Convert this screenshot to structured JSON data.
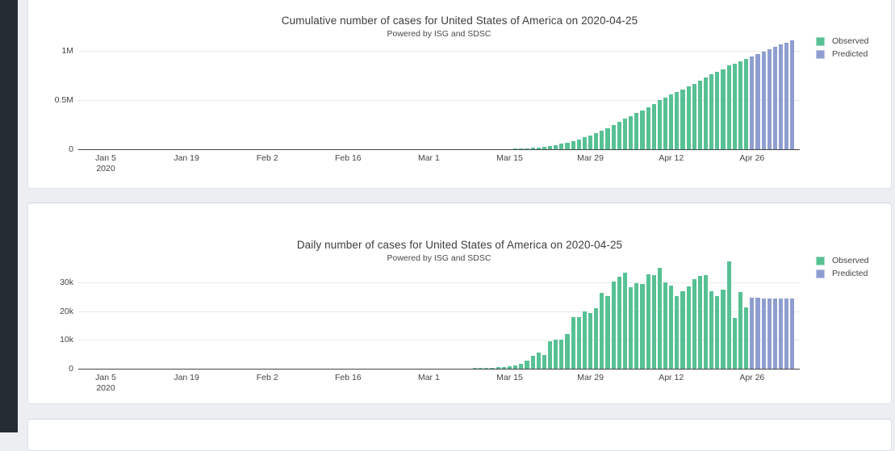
{
  "app": {
    "background_color": "#eceef2",
    "rail_color": "#232b33",
    "card_color": "#ffffff"
  },
  "colors": {
    "observed": "#57c194",
    "observed_border": "#a8dcc7",
    "predicted": "#8f9ed0",
    "predicted_border": "#c0c9e6",
    "grid": "#e9e9e9",
    "axis": "#444444",
    "text": "#444444"
  },
  "chart_data": [
    {
      "type": "bar",
      "title": "Cumulative number of cases for United States of America on 2020-04-25",
      "subtitle": "Powered by ISG and SDSC",
      "xlabel": "",
      "ylabel": "",
      "ylim": [
        0,
        1200000
      ],
      "grid": true,
      "legend_position": "right",
      "x_start_date": "2020-01-05",
      "x_ticks": [
        {
          "label": "Jan 5",
          "sub": "2020",
          "day": 0
        },
        {
          "label": "Jan 19",
          "day": 14
        },
        {
          "label": "Feb 2",
          "day": 28
        },
        {
          "label": "Feb 16",
          "day": 42
        },
        {
          "label": "Mar 1",
          "day": 56
        },
        {
          "label": "Mar 15",
          "day": 70
        },
        {
          "label": "Mar 29",
          "day": 84
        },
        {
          "label": "Apr 12",
          "day": 98
        },
        {
          "label": "Apr 26",
          "day": 112
        }
      ],
      "y_ticks": [
        {
          "label": "0",
          "value": 0
        },
        {
          "label": "0.5M",
          "value": 500000
        },
        {
          "label": "1M",
          "value": 1000000
        }
      ],
      "series": [
        {
          "name": "Observed",
          "color": "#57c194",
          "start_date": "2020-01-05",
          "values": [
            0,
            0,
            0,
            0,
            0,
            0,
            0,
            0,
            0,
            0,
            0,
            0,
            0,
            0,
            0,
            0,
            1,
            1,
            1,
            2,
            3,
            5,
            5,
            5,
            5,
            6,
            7,
            8,
            8,
            8,
            8,
            9,
            9,
            9,
            9,
            9,
            10,
            10,
            10,
            11,
            11,
            11,
            11,
            12,
            12,
            12,
            12,
            13,
            13,
            13,
            16,
            19,
            24,
            30,
            32,
            39,
            64,
            89,
            113,
            147,
            210,
            308,
            424,
            530,
            693,
            983,
            1290,
            1619,
            2172,
            2760,
            3602,
            4585,
            6333,
            9186,
            13768,
            19356,
            24181,
            33581,
            43770,
            53729,
            65767,
            83825,
            101646,
            121454,
            140898,
            161820,
            188161,
            213361,
            243751,
            275575,
            308842,
            337061,
            366656,
            396212,
            429041,
            461426,
            496524,
            526385,
            555302,
            580608,
            607659,
            636339,
            667581,
            699695,
            732186,
            759075,
            784315,
            811854,
            849143,
            866731,
            893274,
            914626
          ]
        },
        {
          "name": "Predicted",
          "color": "#8f9ed0",
          "start_date": "2020-04-26",
          "values": [
            939226,
            963776,
            988276,
            1012726,
            1037176,
            1061576,
            1085976,
            1110326
          ]
        }
      ]
    },
    {
      "type": "bar",
      "title": "Daily number of cases for United States of America on 2020-04-25",
      "subtitle": "Powered by ISG and SDSC",
      "xlabel": "",
      "ylabel": "",
      "ylim": [
        0,
        40000
      ],
      "grid": true,
      "legend_position": "right",
      "x_start_date": "2020-01-05",
      "x_ticks": [
        {
          "label": "Jan 5",
          "sub": "2020",
          "day": 0
        },
        {
          "label": "Jan 19",
          "day": 14
        },
        {
          "label": "Feb 2",
          "day": 28
        },
        {
          "label": "Feb 16",
          "day": 42
        },
        {
          "label": "Mar 1",
          "day": 56
        },
        {
          "label": "Mar 15",
          "day": 70
        },
        {
          "label": "Mar 29",
          "day": 84
        },
        {
          "label": "Apr 12",
          "day": 98
        },
        {
          "label": "Apr 26",
          "day": 112
        }
      ],
      "y_ticks": [
        {
          "label": "0",
          "value": 0
        },
        {
          "label": "10k",
          "value": 10000
        },
        {
          "label": "20k",
          "value": 20000
        },
        {
          "label": "30k",
          "value": 30000
        }
      ],
      "series": [
        {
          "name": "Observed",
          "color": "#57c194",
          "start_date": "2020-01-05",
          "values": [
            0,
            0,
            0,
            0,
            0,
            0,
            0,
            0,
            0,
            0,
            0,
            0,
            0,
            0,
            0,
            0,
            1,
            0,
            0,
            1,
            1,
            2,
            0,
            0,
            0,
            1,
            1,
            1,
            0,
            0,
            0,
            1,
            0,
            0,
            0,
            0,
            1,
            0,
            0,
            1,
            0,
            0,
            0,
            1,
            0,
            0,
            0,
            1,
            0,
            0,
            3,
            3,
            5,
            6,
            2,
            7,
            25,
            25,
            24,
            34,
            63,
            98,
            116,
            106,
            163,
            290,
            307,
            329,
            553,
            588,
            842,
            983,
            1748,
            2853,
            4582,
            5588,
            4825,
            9400,
            10189,
            9959,
            12038,
            18058,
            17821,
            19808,
            19444,
            20922,
            26341,
            25200,
            30390,
            31824,
            33267,
            28219,
            29595,
            29556,
            32829,
            32385,
            35098,
            29861,
            28917,
            25306,
            27051,
            28680,
            31242,
            32114,
            32491,
            26889,
            25240,
            27539,
            37289,
            17588,
            26543,
            21352
          ]
        },
        {
          "name": "Predicted",
          "color": "#8f9ed0",
          "start_date": "2020-04-26",
          "values": [
            24600,
            24550,
            24500,
            24450,
            24450,
            24400,
            24400,
            24350
          ]
        }
      ]
    }
  ]
}
